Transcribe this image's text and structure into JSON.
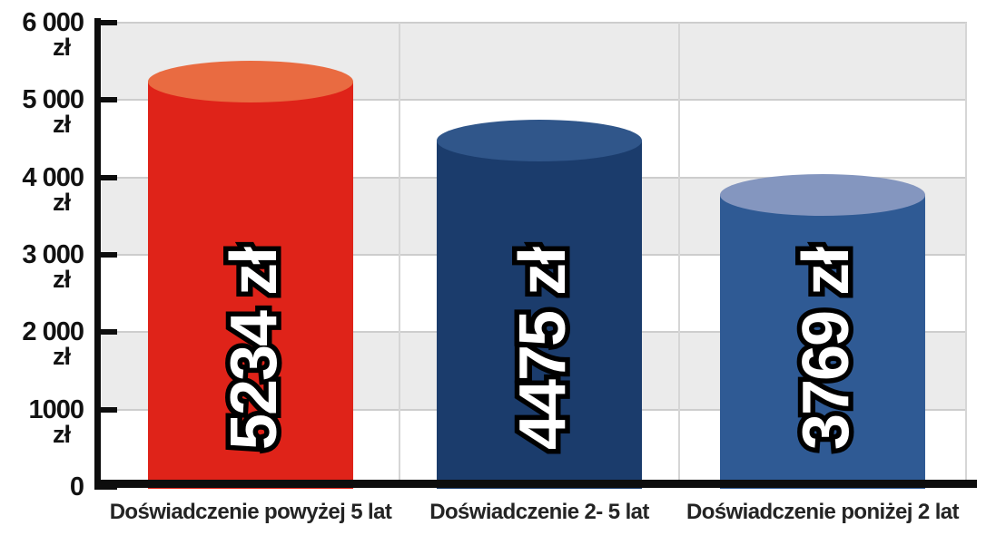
{
  "chart_data": {
    "type": "bar",
    "title": "",
    "subtitle": "",
    "legend": "none",
    "categories": [
      "Doświadczenie powyżej 5 lat",
      "Doświadczenie 2- 5 lat",
      "Doświadczenie poniżej 2 lat"
    ],
    "values": [
      5234,
      4475,
      3769
    ],
    "bar_value_labels": [
      "5234 zł",
      "4475 zł",
      "3769 zł"
    ],
    "bar_colors": [
      {
        "body": "#df2319",
        "top": "#e96b41"
      },
      {
        "body": "#1b3c6c",
        "top": "#30568a"
      },
      {
        "body": "#2f5a94",
        "top": "#8496bf"
      }
    ],
    "xlabel": "",
    "ylabel": "",
    "y_axis": {
      "min": 0,
      "max": 6000,
      "tick_interval": 1000,
      "tick_labels": [
        {
          "value": 6000,
          "number": "6 000",
          "unit": "zł"
        },
        {
          "value": 5000,
          "number": "5 000",
          "unit": "zł"
        },
        {
          "value": 4000,
          "number": "4 000",
          "unit": "zł"
        },
        {
          "value": 3000,
          "number": "3 000",
          "unit": "zł"
        },
        {
          "value": 2000,
          "number": "2 000",
          "unit": "zł"
        },
        {
          "value": 1000,
          "number": "1000",
          "unit": "zł"
        },
        {
          "value": 0,
          "number": "0",
          "unit": ""
        }
      ]
    },
    "grid": {
      "horizontal_bands_every": 1000,
      "gray_band_ranges": [
        [
          5000,
          6000
        ],
        [
          3000,
          4000
        ],
        [
          1000,
          2000
        ]
      ],
      "band_color": "#ebebeb",
      "line_color": "#cdcdcd",
      "vertical_separators": 2,
      "gridlines_on": true
    },
    "value_label_style": {
      "fill": "#ffffff",
      "outline": "#000000",
      "rotation_deg": -90
    },
    "axis_color": "#0d0d0d",
    "tick_label_color": "#121212",
    "category_label_color": "#242424"
  }
}
